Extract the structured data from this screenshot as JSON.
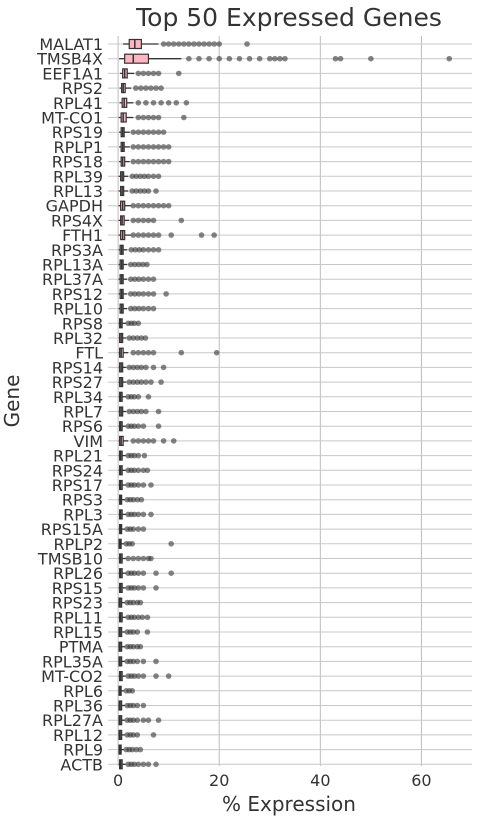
{
  "chart_data": {
    "type": "boxplot",
    "title": "Top 50 Expressed Genes",
    "xlabel": "% Expression",
    "ylabel": "Gene",
    "xlim": [
      -2,
      70
    ],
    "x_ticks": [
      0,
      20,
      40,
      60
    ],
    "grid": true,
    "box_color": "#ffb6c1",
    "outlier_color": "#333333",
    "genes": [
      {
        "name": "MALAT1",
        "q1": 2.2,
        "median": 3.3,
        "q3": 4.6,
        "wlo": 1.0,
        "whi": 8.0,
        "outliers": [
          9,
          10,
          11,
          12,
          13,
          14,
          15,
          16,
          17,
          18,
          19,
          20,
          25.5
        ]
      },
      {
        "name": "TMSB4X",
        "q1": 1.3,
        "median": 3.0,
        "q3": 6.0,
        "wlo": 0.2,
        "whi": 12.5,
        "outliers": [
          14,
          16,
          18,
          20,
          22,
          24,
          26,
          28,
          30,
          31,
          32,
          33,
          43,
          44,
          50,
          65.5
        ]
      },
      {
        "name": "EEF1A1",
        "q1": 0.9,
        "median": 1.3,
        "q3": 1.8,
        "wlo": 0.4,
        "whi": 3.2,
        "outliers": [
          4,
          5,
          6,
          7,
          8,
          12
        ]
      },
      {
        "name": "RPS2",
        "q1": 0.7,
        "median": 1.0,
        "q3": 1.4,
        "wlo": 0.3,
        "whi": 2.6,
        "outliers": [
          3.5,
          4.5,
          5.5,
          6.5,
          7.5,
          8.5
        ]
      },
      {
        "name": "RPL41",
        "q1": 0.8,
        "median": 1.2,
        "q3": 1.7,
        "wlo": 0.3,
        "whi": 3.0,
        "outliers": [
          4,
          5.5,
          7,
          8.5,
          10,
          11.5,
          13.5
        ]
      },
      {
        "name": "MT-CO1",
        "q1": 0.6,
        "median": 1.0,
        "q3": 1.6,
        "wlo": 0.1,
        "whi": 3.0,
        "outliers": [
          4,
          5,
          6,
          7,
          8,
          13
        ]
      },
      {
        "name": "RPS19",
        "q1": 0.6,
        "median": 0.9,
        "q3": 1.2,
        "wlo": 0.2,
        "whi": 2.3,
        "outliers": [
          3,
          4,
          5,
          6,
          7,
          8,
          9
        ]
      },
      {
        "name": "RPLP1",
        "q1": 0.6,
        "median": 0.9,
        "q3": 1.2,
        "wlo": 0.2,
        "whi": 2.3,
        "outliers": [
          3,
          4,
          5,
          6,
          7,
          8,
          9,
          10
        ]
      },
      {
        "name": "RPS18",
        "q1": 0.6,
        "median": 0.9,
        "q3": 1.3,
        "wlo": 0.2,
        "whi": 2.3,
        "outliers": [
          3,
          4,
          5,
          6,
          7,
          8,
          9,
          10
        ]
      },
      {
        "name": "RPL39",
        "q1": 0.5,
        "median": 0.8,
        "q3": 1.1,
        "wlo": 0.1,
        "whi": 2.0,
        "outliers": [
          2.8,
          3.6,
          4.4,
          5.2,
          6,
          7,
          8
        ]
      },
      {
        "name": "RPL13",
        "q1": 0.5,
        "median": 0.8,
        "q3": 1.1,
        "wlo": 0.1,
        "whi": 2.0,
        "outliers": [
          2.8,
          3.6,
          4.4,
          5.2,
          6,
          7.5
        ]
      },
      {
        "name": "GAPDH",
        "q1": 0.5,
        "median": 0.9,
        "q3": 1.3,
        "wlo": 0.1,
        "whi": 2.5,
        "outliers": [
          3,
          4,
          5,
          6,
          7,
          8,
          9,
          10
        ]
      },
      {
        "name": "RPS4X",
        "q1": 0.5,
        "median": 0.8,
        "q3": 1.2,
        "wlo": 0.1,
        "whi": 2.2,
        "outliers": [
          3,
          4,
          5,
          6,
          7,
          12.5
        ]
      },
      {
        "name": "FTH1",
        "q1": 0.5,
        "median": 0.9,
        "q3": 1.3,
        "wlo": 0.1,
        "whi": 2.5,
        "outliers": [
          3,
          4,
          5,
          6,
          7,
          8,
          10.5,
          16.5,
          19
        ]
      },
      {
        "name": "RPS3A",
        "q1": 0.4,
        "median": 0.7,
        "q3": 1.0,
        "wlo": 0.1,
        "whi": 1.8,
        "outliers": [
          2.6,
          3.4,
          4.2,
          5,
          6,
          7,
          8
        ]
      },
      {
        "name": "RPL13A",
        "q1": 0.4,
        "median": 0.7,
        "q3": 1.0,
        "wlo": 0.1,
        "whi": 1.8,
        "outliers": [
          2.5,
          3.3,
          4.1,
          4.9,
          5.7
        ]
      },
      {
        "name": "RPL37A",
        "q1": 0.4,
        "median": 0.7,
        "q3": 1.0,
        "wlo": 0.1,
        "whi": 1.8,
        "outliers": [
          2.5,
          3.3,
          4.1,
          5,
          6,
          7
        ]
      },
      {
        "name": "RPS12",
        "q1": 0.4,
        "median": 0.7,
        "q3": 1.0,
        "wlo": 0.1,
        "whi": 1.8,
        "outliers": [
          2.5,
          3.3,
          4.1,
          5,
          6,
          7,
          9.5
        ]
      },
      {
        "name": "RPL10",
        "q1": 0.4,
        "median": 0.7,
        "q3": 1.0,
        "wlo": 0.1,
        "whi": 1.8,
        "outliers": [
          2.5,
          3.3,
          4.1,
          5,
          6,
          7
        ]
      },
      {
        "name": "RPS8",
        "q1": 0.3,
        "median": 0.5,
        "q3": 0.8,
        "wlo": 0.1,
        "whi": 1.5,
        "outliers": [
          2,
          2.6,
          3.2,
          4
        ]
      },
      {
        "name": "RPL32",
        "q1": 0.3,
        "median": 0.6,
        "q3": 0.9,
        "wlo": 0.1,
        "whi": 1.6,
        "outliers": [
          2.2,
          3,
          3.8,
          4.6,
          5.4
        ]
      },
      {
        "name": "FTL",
        "q1": 0.3,
        "median": 0.6,
        "q3": 1.0,
        "wlo": 0.1,
        "whi": 2.0,
        "outliers": [
          3,
          4,
          5,
          6,
          7,
          12.5,
          19.5
        ]
      },
      {
        "name": "RPS14",
        "q1": 0.3,
        "median": 0.6,
        "q3": 0.9,
        "wlo": 0.1,
        "whi": 1.6,
        "outliers": [
          2.2,
          3,
          3.8,
          4.6,
          5.5,
          7,
          9
        ]
      },
      {
        "name": "RPS27",
        "q1": 0.3,
        "median": 0.6,
        "q3": 0.9,
        "wlo": 0.1,
        "whi": 1.6,
        "outliers": [
          2.2,
          3,
          3.8,
          4.6,
          5.5,
          6.5,
          8.5
        ]
      },
      {
        "name": "RPL34",
        "q1": 0.3,
        "median": 0.5,
        "q3": 0.8,
        "wlo": 0.1,
        "whi": 1.5,
        "outliers": [
          2,
          2.6,
          3.2,
          4,
          6
        ]
      },
      {
        "name": "RPL7",
        "q1": 0.3,
        "median": 0.6,
        "q3": 0.9,
        "wlo": 0.1,
        "whi": 1.6,
        "outliers": [
          2.2,
          3,
          3.8,
          4.6,
          5.5,
          8
        ]
      },
      {
        "name": "RPS6",
        "q1": 0.3,
        "median": 0.5,
        "q3": 0.8,
        "wlo": 0.1,
        "whi": 1.5,
        "outliers": [
          2,
          2.6,
          3.2,
          4,
          5,
          8
        ]
      },
      {
        "name": "VIM",
        "q1": 0.3,
        "median": 0.6,
        "q3": 1.0,
        "wlo": 0.1,
        "whi": 2.0,
        "outliers": [
          3,
          4,
          5,
          6,
          7,
          9,
          11
        ]
      },
      {
        "name": "RPL21",
        "q1": 0.3,
        "median": 0.5,
        "q3": 0.8,
        "wlo": 0.1,
        "whi": 1.5,
        "outliers": [
          2,
          2.6,
          3.2,
          4,
          5.2
        ]
      },
      {
        "name": "RPS24",
        "q1": 0.3,
        "median": 0.5,
        "q3": 0.8,
        "wlo": 0.1,
        "whi": 1.5,
        "outliers": [
          2,
          2.6,
          3.2,
          4,
          5,
          5.8
        ]
      },
      {
        "name": "RPS17",
        "q1": 0.3,
        "median": 0.5,
        "q3": 0.8,
        "wlo": 0.1,
        "whi": 1.5,
        "outliers": [
          2,
          2.6,
          3.2,
          4,
          5,
          6.5
        ]
      },
      {
        "name": "RPS3",
        "q1": 0.3,
        "median": 0.5,
        "q3": 0.7,
        "wlo": 0.1,
        "whi": 1.3,
        "outliers": [
          1.8,
          2.4,
          3,
          3.8,
          4.6
        ]
      },
      {
        "name": "RPL3",
        "q1": 0.3,
        "median": 0.5,
        "q3": 0.8,
        "wlo": 0.1,
        "whi": 1.5,
        "outliers": [
          2,
          2.6,
          3.2,
          4,
          5,
          6.5
        ]
      },
      {
        "name": "RPS15A",
        "q1": 0.3,
        "median": 0.5,
        "q3": 0.7,
        "wlo": 0.1,
        "whi": 1.3,
        "outliers": [
          1.8,
          2.4,
          3,
          4,
          5
        ]
      },
      {
        "name": "RPLP2",
        "q1": 0.2,
        "median": 0.4,
        "q3": 0.6,
        "wlo": 0.05,
        "whi": 1.1,
        "outliers": [
          1.6,
          2.2,
          2.8,
          10.5
        ]
      },
      {
        "name": "TMSB10",
        "q1": 0.3,
        "median": 0.5,
        "q3": 0.8,
        "wlo": 0.1,
        "whi": 1.5,
        "outliers": [
          2,
          3,
          4,
          5,
          6,
          6.5
        ]
      },
      {
        "name": "RPL26",
        "q1": 0.3,
        "median": 0.5,
        "q3": 0.8,
        "wlo": 0.1,
        "whi": 1.5,
        "outliers": [
          2,
          2.6,
          3.2,
          4,
          5,
          7.5,
          10.5
        ]
      },
      {
        "name": "RPS15",
        "q1": 0.3,
        "median": 0.5,
        "q3": 0.8,
        "wlo": 0.1,
        "whi": 1.5,
        "outliers": [
          2,
          2.6,
          3.2,
          4,
          5,
          7.5
        ]
      },
      {
        "name": "RPS23",
        "q1": 0.2,
        "median": 0.4,
        "q3": 0.7,
        "wlo": 0.05,
        "whi": 1.3,
        "outliers": [
          1.8,
          2.4,
          3,
          3.8,
          4.4
        ]
      },
      {
        "name": "RPL11",
        "q1": 0.3,
        "median": 0.5,
        "q3": 0.8,
        "wlo": 0.1,
        "whi": 1.5,
        "outliers": [
          2,
          2.6,
          3.2,
          4,
          4.8,
          5.8
        ]
      },
      {
        "name": "RPL15",
        "q1": 0.2,
        "median": 0.4,
        "q3": 0.7,
        "wlo": 0.05,
        "whi": 1.3,
        "outliers": [
          1.8,
          2.4,
          3,
          3.8,
          5.8
        ]
      },
      {
        "name": "PTMA",
        "q1": 0.2,
        "median": 0.4,
        "q3": 0.7,
        "wlo": 0.05,
        "whi": 1.3,
        "outliers": [
          1.8,
          2.4,
          3,
          3.8,
          4.4
        ]
      },
      {
        "name": "RPL35A",
        "q1": 0.2,
        "median": 0.4,
        "q3": 0.7,
        "wlo": 0.05,
        "whi": 1.3,
        "outliers": [
          1.8,
          2.4,
          3,
          3.8,
          5,
          7.5
        ]
      },
      {
        "name": "MT-CO2",
        "q1": 0.3,
        "median": 0.5,
        "q3": 0.8,
        "wlo": 0.1,
        "whi": 1.5,
        "outliers": [
          2,
          2.6,
          3.2,
          4,
          5,
          7.5,
          10
        ]
      },
      {
        "name": "RPL6",
        "q1": 0.2,
        "median": 0.4,
        "q3": 0.6,
        "wlo": 0.05,
        "whi": 1.1,
        "outliers": [
          1.6,
          2.2,
          2.8
        ]
      },
      {
        "name": "RPL36",
        "q1": 0.2,
        "median": 0.4,
        "q3": 0.7,
        "wlo": 0.05,
        "whi": 1.3,
        "outliers": [
          1.8,
          2.4,
          3,
          3.8,
          5
        ]
      },
      {
        "name": "RPL27A",
        "q1": 0.2,
        "median": 0.4,
        "q3": 0.7,
        "wlo": 0.05,
        "whi": 1.3,
        "outliers": [
          1.8,
          2.4,
          3,
          3.8,
          5,
          6,
          8
        ]
      },
      {
        "name": "RPL12",
        "q1": 0.2,
        "median": 0.4,
        "q3": 0.7,
        "wlo": 0.05,
        "whi": 1.3,
        "outliers": [
          1.8,
          2.4,
          3,
          3.8,
          7
        ]
      },
      {
        "name": "RPL9",
        "q1": 0.2,
        "median": 0.4,
        "q3": 0.6,
        "wlo": 0.05,
        "whi": 1.1,
        "outliers": [
          1.6,
          2.2,
          2.8,
          3.6,
          4.4
        ]
      },
      {
        "name": "ACTB",
        "q1": 0.3,
        "median": 0.5,
        "q3": 0.8,
        "wlo": 0.1,
        "whi": 1.5,
        "outliers": [
          2,
          2.6,
          3.2,
          4,
          5,
          6,
          7.5
        ]
      }
    ]
  }
}
